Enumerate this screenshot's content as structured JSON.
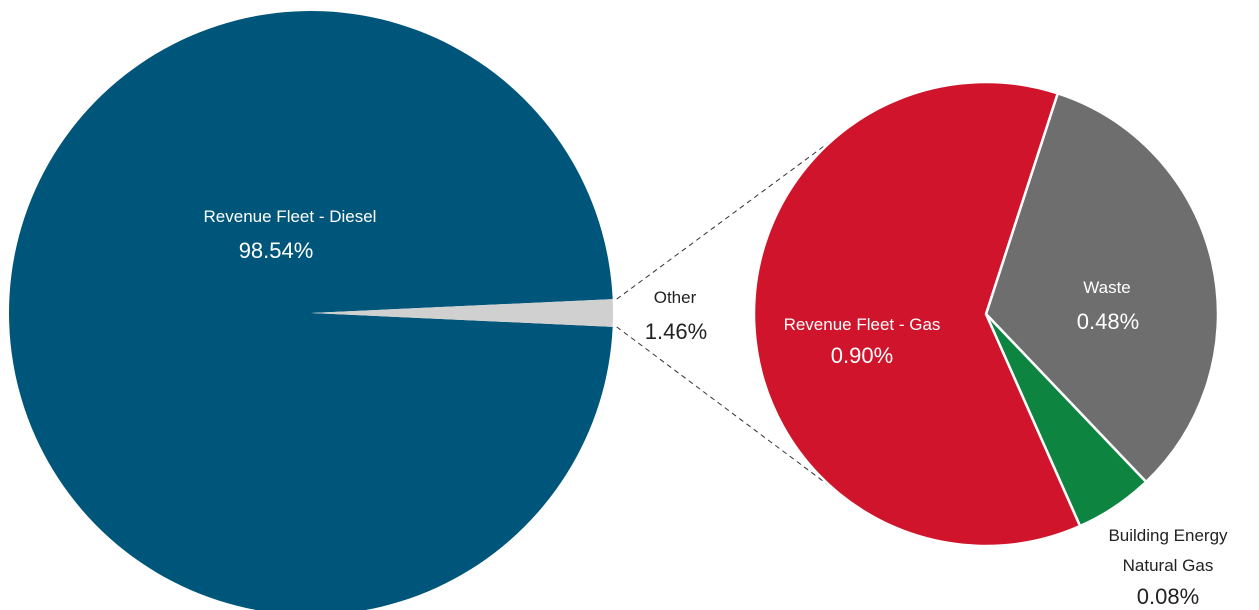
{
  "chart_data": {
    "type": "pie",
    "main_pie": {
      "slices": [
        {
          "label": "Revenue Fleet - Diesel",
          "value": 98.54,
          "value_label": "98.54%",
          "color": "#00567a"
        },
        {
          "label": "Other",
          "value": 1.46,
          "value_label": "1.46%",
          "color": "#d0d0d0"
        }
      ]
    },
    "sub_pie": {
      "breakdown_of": "Other",
      "slices": [
        {
          "label": "Revenue Fleet - Gas",
          "value": 0.9,
          "value_label": "0.90%",
          "color": "#cf142b"
        },
        {
          "label": "Waste",
          "value": 0.48,
          "value_label": "0.48%",
          "color": "#6e6e6e"
        },
        {
          "label_lines": [
            "Building Energy",
            "Natural Gas"
          ],
          "value": 0.08,
          "value_label": "0.08%",
          "color": "#0d8540"
        }
      ]
    },
    "legend": "none",
    "grid": false
  }
}
